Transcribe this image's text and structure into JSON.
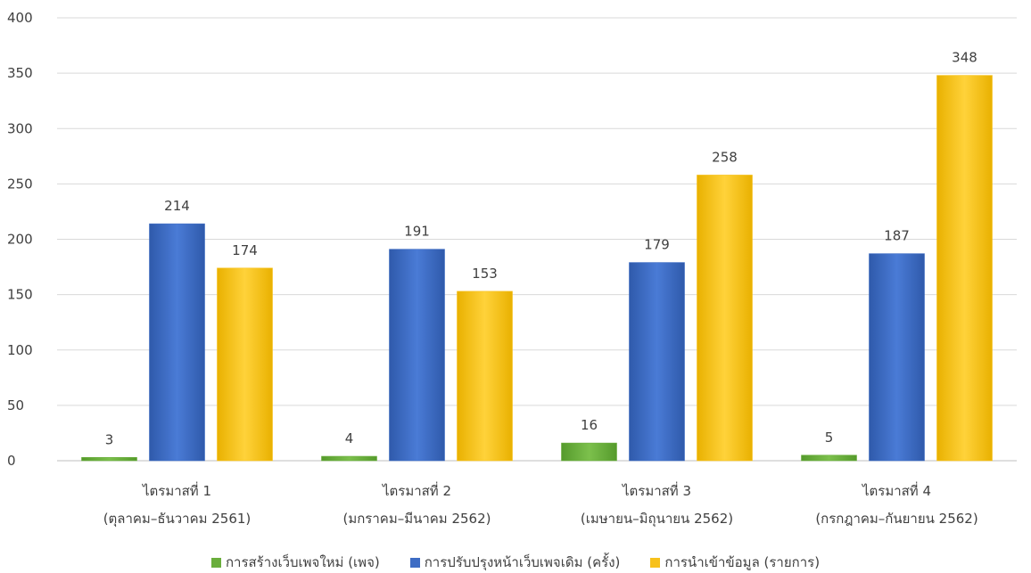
{
  "chart_data": {
    "type": "bar",
    "title": "",
    "xlabel": "",
    "ylabel": "",
    "ylim": [
      0,
      400
    ],
    "yticks": [
      0,
      50,
      100,
      150,
      200,
      250,
      300,
      350,
      400
    ],
    "grid": true,
    "legend_position": "bottom",
    "categories": [
      [
        "ไตรมาสที่ 1",
        "(ตุลาคม–ธันวาคม 2561)"
      ],
      [
        "ไตรมาสที่ 2",
        "(มกราคม–มีนาคม 2562)"
      ],
      [
        "ไตรมาสที่ 3",
        "(เมษายน–มิถุนายน 2562)"
      ],
      [
        "ไตรมาสที่ 4",
        "(กรกฎาคม–กันยายน 2562)"
      ]
    ],
    "series": [
      {
        "name": "การสร้างเว็บเพจใหม่ (เพจ)",
        "values": [
          3,
          4,
          16,
          5
        ],
        "color": "#6aae3c"
      },
      {
        "name": "การปรับปรุงหน้าเว็บเพจเดิม (ครั้ง)",
        "values": [
          214,
          191,
          179,
          187
        ],
        "color": "#3d6cc4"
      },
      {
        "name": "การนำเข้าข้อมูล (รายการ)",
        "values": [
          174,
          153,
          258,
          348
        ],
        "color": "#f7c11b"
      }
    ]
  }
}
